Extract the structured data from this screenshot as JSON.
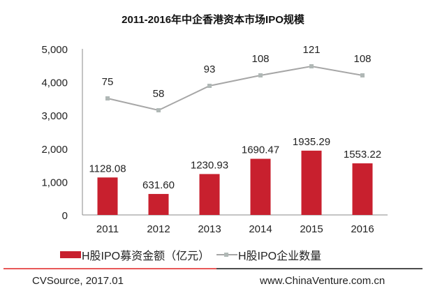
{
  "chart_data": {
    "type": "bar",
    "title": "2011-2016年中企香港资本市场IPO规模",
    "categories": [
      "2011",
      "2012",
      "2013",
      "2014",
      "2015",
      "2016"
    ],
    "ylim": [
      0,
      5000
    ],
    "yticks": [
      0,
      1000,
      2000,
      3000,
      4000,
      5000
    ],
    "ytick_labels": [
      "0",
      "1,000",
      "2,000",
      "3,000",
      "4,000",
      "5,000"
    ],
    "secondary_ylim": [
      -92,
      146
    ],
    "series": [
      {
        "name": "H股IPO募资金额（亿元）",
        "type": "bar",
        "axis": "primary",
        "color": "#c8202e",
        "values": [
          1128.08,
          631.6,
          1230.93,
          1690.47,
          1935.29,
          1553.22
        ],
        "labels": [
          "1128.08",
          "631.60",
          "1230.93",
          "1690.47",
          "1935.29",
          "1553.22"
        ]
      },
      {
        "name": "H股IPO企业数量",
        "type": "line",
        "axis": "secondary",
        "color": "#a6a6a6",
        "marker_color": "#b0b8b6",
        "values": [
          75,
          58,
          93,
          108,
          121,
          108
        ],
        "labels": [
          "75",
          "58",
          "93",
          "108",
          "121",
          "108"
        ]
      }
    ],
    "legend": "bottom",
    "grid": false
  },
  "footer": {
    "source": "CVSource, 2017.01",
    "website": "www.ChinaVenture.com.cn"
  }
}
